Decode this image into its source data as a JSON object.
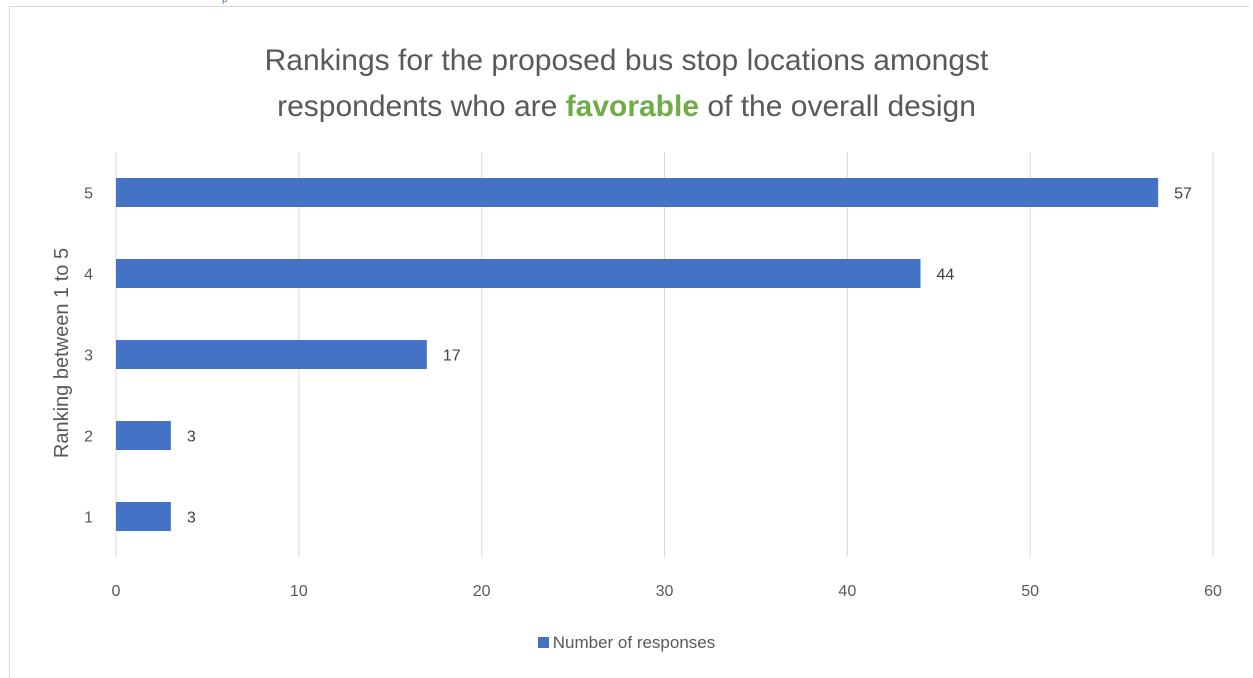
{
  "chart_data": {
    "type": "bar",
    "orientation": "horizontal",
    "title": {
      "before": "Rankings for the proposed bus stop locations amongst",
      "line2_before": "respondents who are ",
      "emphasis": "favorable",
      "after": " of the overall design"
    },
    "ylabel": "Ranking between 1 to 5",
    "xlabel": "",
    "categories": [
      "1",
      "2",
      "3",
      "4",
      "5"
    ],
    "series": [
      {
        "name": "Number of responses",
        "values": [
          3,
          3,
          17,
          44,
          57
        ],
        "color": "#4472c4"
      }
    ],
    "xlim": [
      0,
      60
    ],
    "xticks": [
      0,
      10,
      20,
      30,
      40,
      50,
      60
    ],
    "grid": true,
    "legend_position": "bottom",
    "colors": {
      "bar": "#4472c4",
      "emphasis": "#70ad47",
      "gridline": "#d9d9d9",
      "text": "#595959"
    }
  }
}
